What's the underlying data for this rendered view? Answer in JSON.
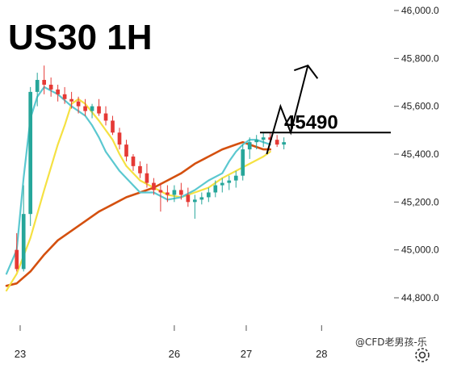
{
  "title": "US30 1H",
  "watermark": "@CFD老男孩-乐",
  "settings_icon": "gear-icon",
  "colors": {
    "bull": "#26a69a",
    "bear": "#e53935",
    "ma_fast": "#5bc8d0",
    "ma_mid": "#f5e142",
    "ma_slow": "#d4500f",
    "level": "#000000"
  },
  "chart_data": {
    "type": "candlestick",
    "title": "US30 1H",
    "ylim": [
      44750,
      46000
    ],
    "y_ticks": [
      "46,000.0",
      "45,800.0",
      "45,600.0",
      "45,400.0",
      "45,200.0",
      "45,000.0",
      "44,800.0"
    ],
    "y_tick_values": [
      46000,
      45800,
      45600,
      45400,
      45200,
      45000,
      44800
    ],
    "x_ticks": [
      "23",
      "26",
      "27",
      "28"
    ],
    "x_tick_positions": [
      0.5,
      23,
      33.5,
      44.5
    ],
    "x_range": [
      -1.5,
      48
    ],
    "level": {
      "label": "45490",
      "value": 45490
    },
    "projection": [
      [
        36.5,
        45400
      ],
      [
        38.5,
        45600
      ],
      [
        40,
        45490
      ],
      [
        42.5,
        45770
      ]
    ],
    "candles": [
      [
        45000,
        45070,
        44910,
        44920
      ],
      [
        44920,
        45270,
        44910,
        45150
      ],
      [
        45150,
        45680,
        45100,
        45660
      ],
      [
        45660,
        45740,
        45600,
        45710
      ],
      [
        45710,
        45770,
        45650,
        45690
      ],
      [
        45690,
        45720,
        45640,
        45670
      ],
      [
        45670,
        45690,
        45620,
        45650
      ],
      [
        45650,
        45680,
        45610,
        45630
      ],
      [
        45630,
        45660,
        45590,
        45620
      ],
      [
        45620,
        45640,
        45570,
        45600
      ],
      [
        45600,
        45630,
        45560,
        45580
      ],
      [
        45580,
        45610,
        45550,
        45600
      ],
      [
        45600,
        45630,
        45560,
        45570
      ],
      [
        45570,
        45600,
        45520,
        45540
      ],
      [
        45540,
        45560,
        45480,
        45490
      ],
      [
        45490,
        45510,
        45420,
        45440
      ],
      [
        45440,
        45460,
        45370,
        45390
      ],
      [
        45390,
        45400,
        45330,
        45350
      ],
      [
        45350,
        45370,
        45300,
        45320
      ],
      [
        45320,
        45360,
        45260,
        45280
      ],
      [
        45280,
        45300,
        45230,
        45250
      ],
      [
        45250,
        45280,
        45160,
        45240
      ],
      [
        45240,
        45270,
        45200,
        45230
      ],
      [
        45230,
        45270,
        45200,
        45250
      ],
      [
        45250,
        45280,
        45210,
        45230
      ],
      [
        45230,
        45260,
        45180,
        45200
      ],
      [
        45200,
        45230,
        45130,
        45210
      ],
      [
        45210,
        45240,
        45190,
        45220
      ],
      [
        45220,
        45260,
        45200,
        45240
      ],
      [
        45240,
        45290,
        45220,
        45270
      ],
      [
        45270,
        45300,
        45240,
        45280
      ],
      [
        45280,
        45310,
        45250,
        45290
      ],
      [
        45290,
        45330,
        45260,
        45310
      ],
      [
        45310,
        45440,
        45290,
        45420
      ],
      [
        45420,
        45470,
        45380,
        45450
      ],
      [
        45450,
        45480,
        45420,
        45460
      ],
      [
        45460,
        45490,
        45430,
        45470
      ],
      [
        45470,
        45490,
        45440,
        45460
      ],
      [
        45460,
        45480,
        45430,
        45440
      ],
      [
        45440,
        45470,
        45420,
        45450
      ]
    ],
    "ma_fast": [
      [
        -1.5,
        44900
      ],
      [
        0,
        45000
      ],
      [
        1,
        45300
      ],
      [
        2,
        45550
      ],
      [
        3,
        45640
      ],
      [
        4,
        45680
      ],
      [
        6,
        45650
      ],
      [
        8,
        45600
      ],
      [
        10,
        45560
      ],
      [
        11,
        45520
      ],
      [
        12,
        45470
      ],
      [
        13,
        45410
      ],
      [
        14,
        45370
      ],
      [
        15,
        45330
      ],
      [
        16,
        45300
      ],
      [
        17,
        45270
      ],
      [
        18,
        45240
      ],
      [
        20,
        45240
      ],
      [
        22,
        45210
      ],
      [
        24,
        45220
      ],
      [
        26,
        45250
      ],
      [
        28,
        45290
      ],
      [
        30,
        45320
      ],
      [
        31,
        45370
      ],
      [
        32,
        45410
      ],
      [
        33,
        45440
      ],
      [
        34,
        45460
      ],
      [
        35,
        45460
      ],
      [
        36,
        45450
      ],
      [
        37,
        45440
      ]
    ],
    "ma_mid": [
      [
        -1.5,
        44830
      ],
      [
        0,
        44900
      ],
      [
        2,
        45050
      ],
      [
        4,
        45250
      ],
      [
        6,
        45440
      ],
      [
        7,
        45520
      ],
      [
        8,
        45610
      ],
      [
        9,
        45630
      ],
      [
        10,
        45610
      ],
      [
        12,
        45540
      ],
      [
        14,
        45460
      ],
      [
        15,
        45400
      ],
      [
        16,
        45350
      ],
      [
        18,
        45290
      ],
      [
        20,
        45260
      ],
      [
        22,
        45230
      ],
      [
        24,
        45220
      ],
      [
        26,
        45240
      ],
      [
        28,
        45260
      ],
      [
        30,
        45300
      ],
      [
        32,
        45330
      ],
      [
        34,
        45360
      ],
      [
        36,
        45390
      ],
      [
        37,
        45410
      ]
    ],
    "ma_slow": [
      [
        -1.5,
        44850
      ],
      [
        0,
        44860
      ],
      [
        2,
        44910
      ],
      [
        4,
        44980
      ],
      [
        6,
        45040
      ],
      [
        8,
        45080
      ],
      [
        10,
        45120
      ],
      [
        12,
        45160
      ],
      [
        14,
        45190
      ],
      [
        16,
        45220
      ],
      [
        18,
        45240
      ],
      [
        20,
        45260
      ],
      [
        22,
        45290
      ],
      [
        24,
        45320
      ],
      [
        26,
        45360
      ],
      [
        28,
        45390
      ],
      [
        30,
        45420
      ],
      [
        32,
        45440
      ],
      [
        33,
        45450
      ],
      [
        34,
        45440
      ],
      [
        35,
        45430
      ],
      [
        36,
        45420
      ],
      [
        37,
        45420
      ]
    ]
  }
}
